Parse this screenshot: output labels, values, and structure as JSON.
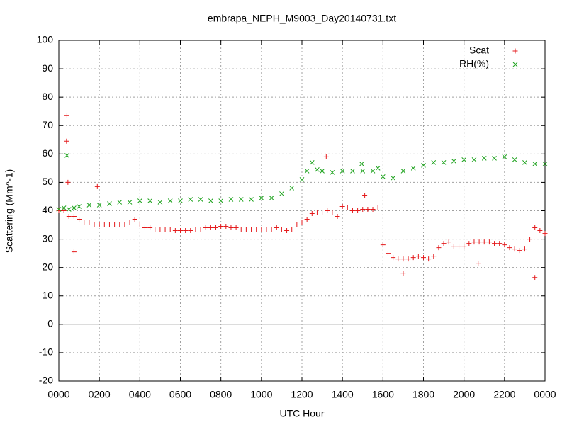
{
  "chart_data": {
    "type": "scatter",
    "title": "embrapa_NEPH_M9003_Day20140731.txt",
    "xlabel": "UTC Hour",
    "ylabel": "Scattering (Mm^-1)",
    "xlim": [
      0,
      24
    ],
    "ylim": [
      -20,
      100
    ],
    "xticks": [
      {
        "value": 0,
        "label": "0000"
      },
      {
        "value": 2,
        "label": "0200"
      },
      {
        "value": 4,
        "label": "0400"
      },
      {
        "value": 6,
        "label": "0600"
      },
      {
        "value": 8,
        "label": "0800"
      },
      {
        "value": 10,
        "label": "1000"
      },
      {
        "value": 12,
        "label": "1200"
      },
      {
        "value": 14,
        "label": "1400"
      },
      {
        "value": 16,
        "label": "1600"
      },
      {
        "value": 18,
        "label": "1800"
      },
      {
        "value": 20,
        "label": "2000"
      },
      {
        "value": 22,
        "label": "2200"
      },
      {
        "value": 24,
        "label": "0000"
      }
    ],
    "yticks": [
      -20,
      -10,
      0,
      10,
      20,
      30,
      40,
      50,
      60,
      70,
      80,
      90,
      100
    ],
    "grid": true,
    "legend": "top-right",
    "series": [
      {
        "name": "Scat",
        "color": "#e41a1c",
        "marker": "plus",
        "x": [
          0,
          0.25,
          0.5,
          0.75,
          1,
          1.25,
          1.5,
          1.75,
          2,
          2.25,
          2.5,
          2.75,
          3,
          3.25,
          3.5,
          3.75,
          4,
          4.25,
          4.5,
          4.75,
          5,
          5.25,
          5.5,
          5.75,
          6,
          6.25,
          6.5,
          6.75,
          7,
          7.25,
          7.5,
          7.75,
          8,
          8.25,
          8.5,
          8.75,
          9,
          9.25,
          9.5,
          9.75,
          10,
          10.25,
          10.5,
          10.75,
          11,
          11.25,
          11.5,
          11.75,
          12,
          12.25,
          12.5,
          12.75,
          13,
          13.25,
          13.5,
          13.75,
          14,
          14.25,
          14.5,
          14.75,
          15,
          15.25,
          15.5,
          15.75,
          16,
          16.25,
          16.5,
          16.75,
          17,
          17.25,
          17.5,
          17.75,
          18,
          18.25,
          18.5,
          18.75,
          19,
          19.25,
          19.5,
          19.75,
          20,
          20.25,
          20.5,
          20.75,
          21,
          21.25,
          21.5,
          21.75,
          22,
          22.25,
          22.5,
          22.75,
          23,
          23.25,
          23.5,
          23.75,
          24,
          0.4,
          0.38,
          0.45,
          0.75,
          1.9,
          13.2,
          15.1,
          17,
          23.5,
          20.7
        ],
        "values": [
          40,
          40,
          38,
          38,
          37,
          36,
          36,
          35,
          35,
          35,
          35,
          35,
          35,
          35,
          36,
          37,
          35,
          34,
          34,
          33.5,
          33.5,
          33.5,
          33.5,
          33,
          33,
          33,
          33,
          33.5,
          33.5,
          34,
          34,
          34,
          34.5,
          34.5,
          34,
          34,
          33.5,
          33.5,
          33.5,
          33.5,
          33.5,
          33.5,
          33.5,
          34,
          33.5,
          33,
          33.5,
          35,
          36,
          37,
          39,
          39.5,
          39.5,
          40,
          39.5,
          38,
          41.5,
          41,
          40,
          40,
          40.5,
          40.5,
          40.5,
          41,
          28,
          25,
          23.5,
          23,
          23,
          23,
          23.5,
          24,
          23.5,
          23,
          24,
          27,
          28.5,
          29,
          27.5,
          27.5,
          27.5,
          28.5,
          29,
          29,
          29,
          29,
          28.5,
          28.5,
          28,
          27,
          26.5,
          26,
          26.5,
          30,
          34,
          33,
          32,
          73.5,
          64.5,
          50,
          25.5,
          48.5,
          59,
          45.5,
          18,
          16.5,
          21.5
        ]
      },
      {
        "name": "RH(%)",
        "color": "#1fa31f",
        "marker": "cross",
        "x": [
          0,
          0.25,
          0.4,
          0.5,
          0.75,
          1,
          1.5,
          2,
          2.5,
          3,
          3.5,
          4,
          4.5,
          5,
          5.5,
          6,
          6.5,
          7,
          7.5,
          8,
          8.5,
          9,
          9.5,
          10,
          10.5,
          11,
          11.5,
          12,
          12.25,
          12.5,
          12.75,
          13,
          13.5,
          14,
          14.5,
          14.95,
          15,
          15.5,
          15.75,
          16,
          16.5,
          17,
          17.5,
          18,
          18.5,
          19,
          19.5,
          20,
          20.5,
          21,
          21.5,
          22,
          22.5,
          23,
          23.5,
          24
        ],
        "values": [
          40.5,
          41,
          59.5,
          40.5,
          41,
          41.5,
          42,
          42,
          42.5,
          43,
          43,
          43.5,
          43.5,
          43,
          43.5,
          43.5,
          44,
          44,
          43.5,
          43.5,
          44,
          44,
          44,
          44.5,
          44.5,
          46,
          48,
          51,
          54,
          57,
          54.5,
          54,
          53.5,
          54,
          54,
          56.5,
          54,
          54,
          55,
          52,
          51.5,
          54,
          55,
          56,
          57,
          57,
          57.5,
          58,
          58,
          58.5,
          58.5,
          59,
          58,
          57,
          56.5,
          56.5
        ]
      }
    ]
  }
}
